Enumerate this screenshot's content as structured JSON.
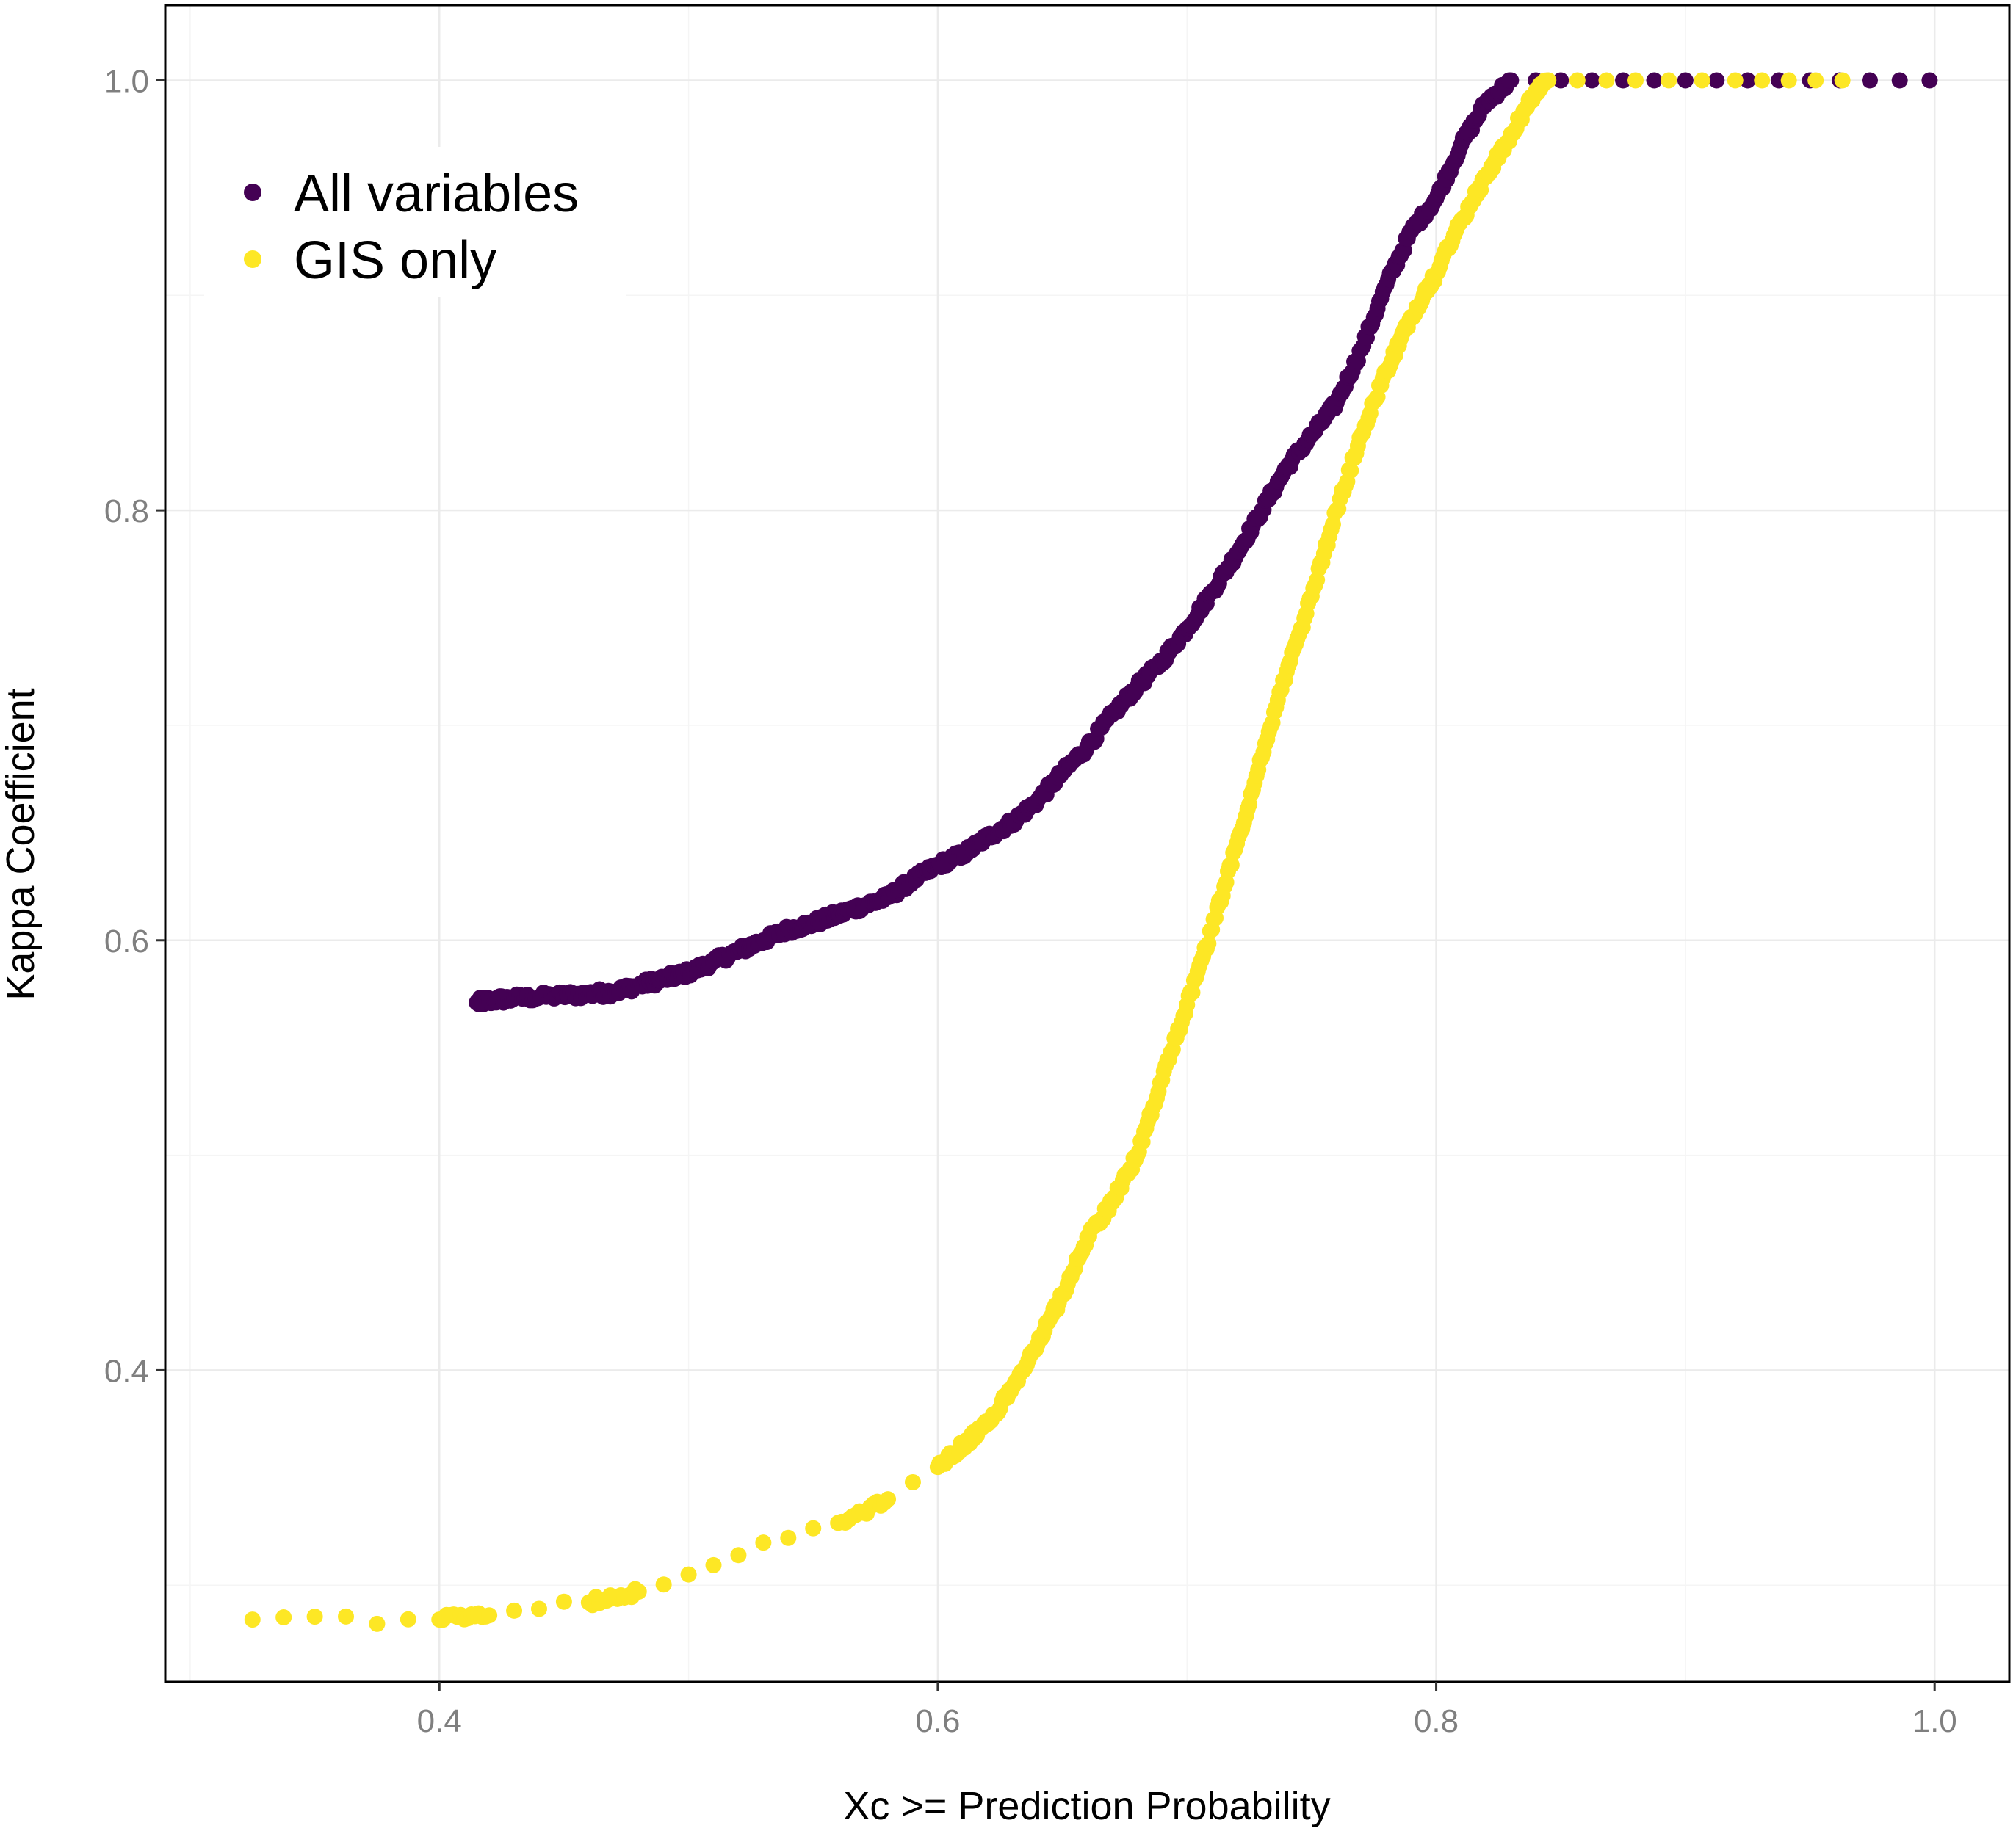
{
  "chart_data": {
    "type": "scatter",
    "xlabel": "Xc >= Prediction Probability",
    "ylabel": "Kappa Coefficient",
    "xlim": [
      0.29,
      1.03
    ],
    "ylim": [
      0.255,
      1.035
    ],
    "x_ticks": [
      0.4,
      0.6,
      0.8,
      1.0
    ],
    "x_tick_labels": [
      "0.4",
      "0.6",
      "0.8",
      "1.0"
    ],
    "y_ticks": [
      0.4,
      0.6,
      0.8,
      1.0
    ],
    "y_tick_labels": [
      "0.4",
      "0.6",
      "0.8",
      "1.0"
    ],
    "grid": true,
    "legend_position": "top-left",
    "series": [
      {
        "name": "All variables",
        "color": "#440154",
        "points": [
          [
            0.415,
            0.571
          ],
          [
            0.42,
            0.572
          ],
          [
            0.43,
            0.573
          ],
          [
            0.445,
            0.574
          ],
          [
            0.46,
            0.575
          ],
          [
            0.47,
            0.576
          ],
          [
            0.48,
            0.579
          ],
          [
            0.49,
            0.582
          ],
          [
            0.5,
            0.585
          ],
          [
            0.51,
            0.59
          ],
          [
            0.52,
            0.595
          ],
          [
            0.53,
            0.6
          ],
          [
            0.54,
            0.605
          ],
          [
            0.55,
            0.608
          ],
          [
            0.56,
            0.612
          ],
          [
            0.57,
            0.616
          ],
          [
            0.58,
            0.62
          ],
          [
            0.59,
            0.628
          ],
          [
            0.6,
            0.635
          ],
          [
            0.61,
            0.64
          ],
          [
            0.62,
            0.648
          ],
          [
            0.63,
            0.655
          ],
          [
            0.64,
            0.665
          ],
          [
            0.65,
            0.678
          ],
          [
            0.66,
            0.69
          ],
          [
            0.67,
            0.705
          ],
          [
            0.68,
            0.718
          ],
          [
            0.69,
            0.73
          ],
          [
            0.7,
            0.745
          ],
          [
            0.71,
            0.762
          ],
          [
            0.72,
            0.78
          ],
          [
            0.73,
            0.8
          ],
          [
            0.74,
            0.82
          ],
          [
            0.75,
            0.835
          ],
          [
            0.76,
            0.85
          ],
          [
            0.77,
            0.875
          ],
          [
            0.78,
            0.905
          ],
          [
            0.79,
            0.93
          ],
          [
            0.8,
            0.945
          ],
          [
            0.81,
            0.97
          ],
          [
            0.82,
            0.99
          ],
          [
            0.83,
            1.0
          ],
          [
            0.85,
            1.0
          ],
          [
            0.9,
            1.0
          ],
          [
            0.95,
            1.0
          ],
          [
            0.998,
            1.0
          ]
        ]
      },
      {
        "name": "GIS only",
        "color": "#fde725",
        "points": [
          [
            0.325,
            0.284
          ],
          [
            0.4,
            0.284
          ],
          [
            0.42,
            0.286
          ],
          [
            0.44,
            0.289
          ],
          [
            0.46,
            0.292
          ],
          [
            0.48,
            0.297
          ],
          [
            0.5,
            0.305
          ],
          [
            0.52,
            0.314
          ],
          [
            0.54,
            0.322
          ],
          [
            0.56,
            0.329
          ],
          [
            0.58,
            0.34
          ],
          [
            0.6,
            0.355
          ],
          [
            0.61,
            0.365
          ],
          [
            0.62,
            0.375
          ],
          [
            0.63,
            0.392
          ],
          [
            0.64,
            0.412
          ],
          [
            0.65,
            0.435
          ],
          [
            0.66,
            0.462
          ],
          [
            0.67,
            0.478
          ],
          [
            0.68,
            0.5
          ],
          [
            0.69,
            0.535
          ],
          [
            0.7,
            0.57
          ],
          [
            0.71,
            0.605
          ],
          [
            0.72,
            0.645
          ],
          [
            0.73,
            0.685
          ],
          [
            0.74,
            0.725
          ],
          [
            0.75,
            0.76
          ],
          [
            0.76,
            0.8
          ],
          [
            0.77,
            0.835
          ],
          [
            0.78,
            0.865
          ],
          [
            0.79,
            0.89
          ],
          [
            0.8,
            0.91
          ],
          [
            0.81,
            0.935
          ],
          [
            0.82,
            0.955
          ],
          [
            0.83,
            0.975
          ],
          [
            0.84,
            0.995
          ],
          [
            0.845,
            1.0
          ],
          [
            0.88,
            1.0
          ],
          [
            0.92,
            1.0
          ],
          [
            0.963,
            1.0
          ]
        ]
      }
    ]
  }
}
